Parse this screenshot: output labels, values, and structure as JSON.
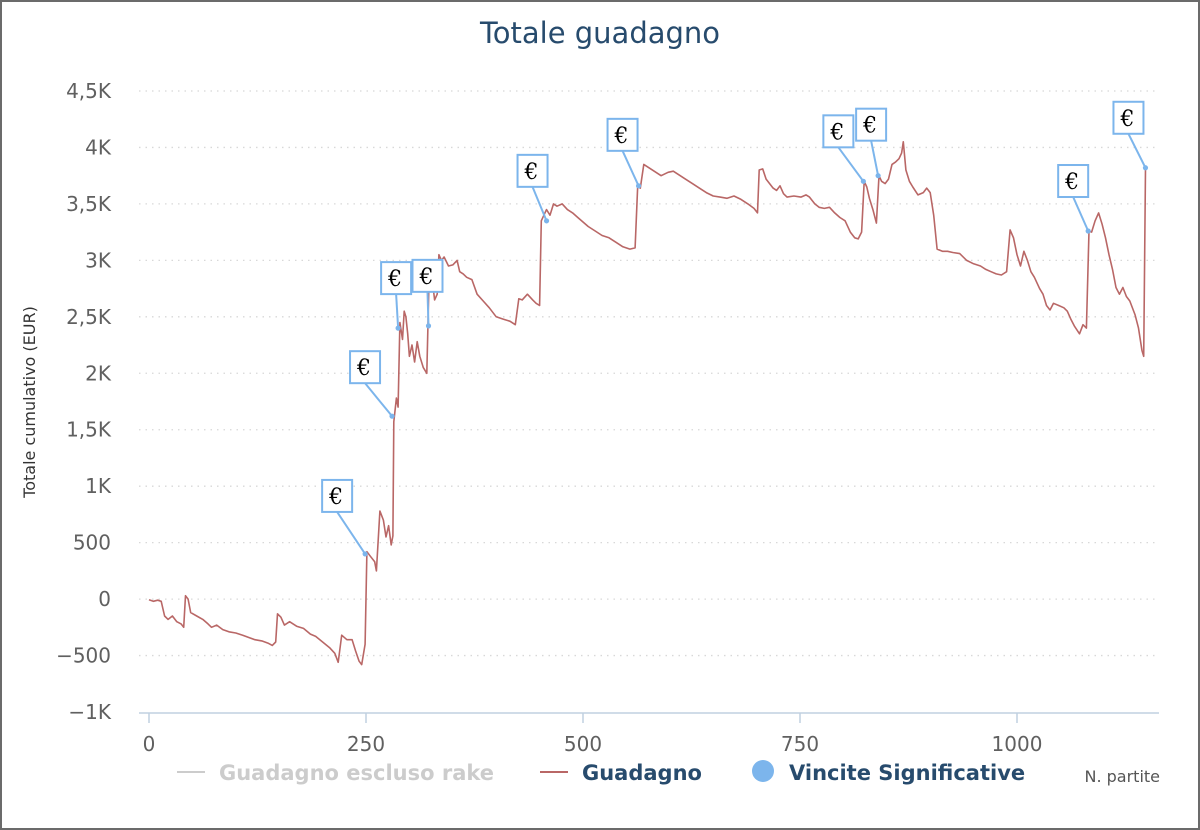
{
  "colors": {
    "title": "#274b6d",
    "line": "#b96766",
    "marker": "#7cb5ec",
    "grid": "#d8d8d8",
    "axis": "#c0d0e0",
    "legend_active": "#274b6d",
    "legend_inactive": "#cccccc"
  },
  "chart_data": {
    "type": "line",
    "title": "Totale guadagno",
    "xlabel": "N. partite",
    "ylabel": "Totale cumulativo (EUR)",
    "xlim": [
      0,
      1160
    ],
    "ylim": [
      -1000,
      4500
    ],
    "x_ticks": [
      0,
      250,
      500,
      750,
      1000
    ],
    "x_tick_labels": [
      "0",
      "250",
      "500",
      "750",
      "1000"
    ],
    "y_ticks": [
      -1000,
      -500,
      0,
      500,
      1000,
      1500,
      2000,
      2500,
      3000,
      3500,
      4000,
      4500
    ],
    "y_tick_labels": [
      "−1K",
      "−500",
      "0",
      "500",
      "1K",
      "1,5K",
      "2K",
      "2,5K",
      "3K",
      "3,5K",
      "4K",
      "4,5K"
    ],
    "grid": true,
    "legend_position": "bottom",
    "legend": [
      {
        "label": "Guadagno escluso rake",
        "active": false,
        "symbol": "line"
      },
      {
        "label": "Guadagno",
        "active": true,
        "symbol": "line"
      },
      {
        "label": "Vincite Significative",
        "active": true,
        "symbol": "circle"
      }
    ],
    "series": [
      {
        "name": "Guadagno",
        "points": [
          [
            0,
            -5
          ],
          [
            5,
            -20
          ],
          [
            10,
            -10
          ],
          [
            14,
            -20
          ],
          [
            18,
            -150
          ],
          [
            22,
            -180
          ],
          [
            27,
            -150
          ],
          [
            32,
            -200
          ],
          [
            37,
            -220
          ],
          [
            40,
            -250
          ],
          [
            42,
            30
          ],
          [
            45,
            0
          ],
          [
            48,
            -120
          ],
          [
            55,
            -150
          ],
          [
            62,
            -180
          ],
          [
            68,
            -220
          ],
          [
            72,
            -250
          ],
          [
            78,
            -230
          ],
          [
            85,
            -270
          ],
          [
            92,
            -290
          ],
          [
            100,
            -300
          ],
          [
            108,
            -320
          ],
          [
            115,
            -340
          ],
          [
            122,
            -360
          ],
          [
            130,
            -370
          ],
          [
            137,
            -390
          ],
          [
            142,
            -410
          ],
          [
            146,
            -380
          ],
          [
            148,
            -130
          ],
          [
            152,
            -160
          ],
          [
            156,
            -230
          ],
          [
            162,
            -200
          ],
          [
            170,
            -240
          ],
          [
            178,
            -260
          ],
          [
            186,
            -310
          ],
          [
            192,
            -330
          ],
          [
            200,
            -380
          ],
          [
            208,
            -430
          ],
          [
            214,
            -480
          ],
          [
            218,
            -560
          ],
          [
            222,
            -320
          ],
          [
            228,
            -360
          ],
          [
            234,
            -360
          ],
          [
            238,
            -460
          ],
          [
            242,
            -550
          ],
          [
            245,
            -580
          ],
          [
            249,
            -400
          ],
          [
            251,
            420
          ],
          [
            255,
            380
          ],
          [
            260,
            330
          ],
          [
            262,
            250
          ],
          [
            266,
            780
          ],
          [
            270,
            700
          ],
          [
            273,
            550
          ],
          [
            276,
            650
          ],
          [
            279,
            480
          ],
          [
            281,
            560
          ],
          [
            282,
            1570
          ],
          [
            285,
            1780
          ],
          [
            287,
            1700
          ],
          [
            289,
            2450
          ],
          [
            292,
            2300
          ],
          [
            294,
            2550
          ],
          [
            296,
            2500
          ],
          [
            298,
            2350
          ],
          [
            300,
            2150
          ],
          [
            303,
            2250
          ],
          [
            306,
            2100
          ],
          [
            309,
            2280
          ],
          [
            312,
            2150
          ],
          [
            316,
            2050
          ],
          [
            320,
            2000
          ],
          [
            323,
            2960
          ],
          [
            326,
            2850
          ],
          [
            329,
            2650
          ],
          [
            332,
            2700
          ],
          [
            334,
            3050
          ],
          [
            337,
            3000
          ],
          [
            340,
            3030
          ],
          [
            345,
            2950
          ],
          [
            350,
            2960
          ],
          [
            355,
            3000
          ],
          [
            358,
            2900
          ],
          [
            362,
            2880
          ],
          [
            366,
            2850
          ],
          [
            372,
            2830
          ],
          [
            378,
            2700
          ],
          [
            385,
            2640
          ],
          [
            392,
            2580
          ],
          [
            400,
            2500
          ],
          [
            408,
            2480
          ],
          [
            416,
            2460
          ],
          [
            422,
            2430
          ],
          [
            426,
            2660
          ],
          [
            430,
            2650
          ],
          [
            436,
            2700
          ],
          [
            442,
            2650
          ],
          [
            446,
            2620
          ],
          [
            450,
            2600
          ],
          [
            452,
            3350
          ],
          [
            458,
            3450
          ],
          [
            462,
            3400
          ],
          [
            466,
            3500
          ],
          [
            470,
            3480
          ],
          [
            476,
            3500
          ],
          [
            482,
            3450
          ],
          [
            488,
            3420
          ],
          [
            494,
            3380
          ],
          [
            500,
            3340
          ],
          [
            506,
            3300
          ],
          [
            514,
            3260
          ],
          [
            522,
            3220
          ],
          [
            530,
            3200
          ],
          [
            538,
            3160
          ],
          [
            546,
            3120
          ],
          [
            554,
            3100
          ],
          [
            560,
            3110
          ],
          [
            563,
            3660
          ],
          [
            566,
            3640
          ],
          [
            570,
            3850
          ],
          [
            576,
            3820
          ],
          [
            582,
            3790
          ],
          [
            590,
            3750
          ],
          [
            598,
            3780
          ],
          [
            604,
            3790
          ],
          [
            610,
            3760
          ],
          [
            618,
            3720
          ],
          [
            626,
            3680
          ],
          [
            634,
            3640
          ],
          [
            642,
            3600
          ],
          [
            650,
            3570
          ],
          [
            658,
            3560
          ],
          [
            666,
            3550
          ],
          [
            674,
            3570
          ],
          [
            682,
            3540
          ],
          [
            690,
            3500
          ],
          [
            697,
            3460
          ],
          [
            701,
            3420
          ],
          [
            703,
            3800
          ],
          [
            707,
            3810
          ],
          [
            711,
            3720
          ],
          [
            715,
            3680
          ],
          [
            719,
            3640
          ],
          [
            723,
            3620
          ],
          [
            727,
            3660
          ],
          [
            731,
            3590
          ],
          [
            735,
            3560
          ],
          [
            743,
            3570
          ],
          [
            751,
            3560
          ],
          [
            757,
            3580
          ],
          [
            761,
            3560
          ],
          [
            767,
            3500
          ],
          [
            772,
            3470
          ],
          [
            778,
            3460
          ],
          [
            784,
            3470
          ],
          [
            790,
            3420
          ],
          [
            796,
            3380
          ],
          [
            802,
            3350
          ],
          [
            808,
            3250
          ],
          [
            813,
            3200
          ],
          [
            817,
            3190
          ],
          [
            821,
            3250
          ],
          [
            824,
            3700
          ],
          [
            827,
            3650
          ],
          [
            830,
            3550
          ],
          [
            834,
            3450
          ],
          [
            838,
            3330
          ],
          [
            841,
            3750
          ],
          [
            844,
            3700
          ],
          [
            848,
            3680
          ],
          [
            852,
            3720
          ],
          [
            856,
            3850
          ],
          [
            860,
            3870
          ],
          [
            864,
            3900
          ],
          [
            867,
            3950
          ],
          [
            869,
            4050
          ],
          [
            872,
            3800
          ],
          [
            876,
            3700
          ],
          [
            880,
            3650
          ],
          [
            886,
            3580
          ],
          [
            892,
            3600
          ],
          [
            896,
            3640
          ],
          [
            900,
            3600
          ],
          [
            904,
            3400
          ],
          [
            908,
            3100
          ],
          [
            914,
            3080
          ],
          [
            920,
            3080
          ],
          [
            926,
            3070
          ],
          [
            934,
            3060
          ],
          [
            942,
            3000
          ],
          [
            950,
            2970
          ],
          [
            958,
            2950
          ],
          [
            964,
            2920
          ],
          [
            970,
            2900
          ],
          [
            976,
            2880
          ],
          [
            982,
            2870
          ],
          [
            988,
            2900
          ],
          [
            992,
            3270
          ],
          [
            996,
            3200
          ],
          [
            1000,
            3050
          ],
          [
            1004,
            2950
          ],
          [
            1008,
            3080
          ],
          [
            1012,
            3000
          ],
          [
            1016,
            2900
          ],
          [
            1020,
            2850
          ],
          [
            1026,
            2750
          ],
          [
            1030,
            2700
          ],
          [
            1034,
            2600
          ],
          [
            1038,
            2560
          ],
          [
            1042,
            2620
          ],
          [
            1048,
            2600
          ],
          [
            1054,
            2580
          ],
          [
            1058,
            2550
          ],
          [
            1062,
            2480
          ],
          [
            1066,
            2420
          ],
          [
            1072,
            2350
          ],
          [
            1076,
            2430
          ],
          [
            1080,
            2400
          ],
          [
            1083,
            3260
          ],
          [
            1086,
            3250
          ],
          [
            1090,
            3350
          ],
          [
            1094,
            3420
          ],
          [
            1098,
            3320
          ],
          [
            1102,
            3200
          ],
          [
            1106,
            3050
          ],
          [
            1110,
            2920
          ],
          [
            1114,
            2760
          ],
          [
            1118,
            2700
          ],
          [
            1122,
            2760
          ],
          [
            1126,
            2680
          ],
          [
            1130,
            2640
          ],
          [
            1136,
            2520
          ],
          [
            1140,
            2400
          ],
          [
            1144,
            2200
          ],
          [
            1146,
            2150
          ],
          [
            1148,
            3820
          ],
          [
            1150,
            3830
          ]
        ]
      }
    ],
    "markers": [
      {
        "series": "Vincite Significative",
        "x": 249,
        "y": 400,
        "label": "€"
      },
      {
        "series": "Vincite Significative",
        "x": 280,
        "y": 1620,
        "label": "€"
      },
      {
        "series": "Vincite Significative",
        "x": 287,
        "y": 2400,
        "label": "€"
      },
      {
        "series": "Vincite Significative",
        "x": 322,
        "y": 2420,
        "label": "€"
      },
      {
        "series": "Vincite Significative",
        "x": 458,
        "y": 3350,
        "label": "€"
      },
      {
        "series": "Vincite Significative",
        "x": 564,
        "y": 3660,
        "label": "€"
      },
      {
        "series": "Vincite Significative",
        "x": 823,
        "y": 3700,
        "label": "€"
      },
      {
        "series": "Vincite Significative",
        "x": 840,
        "y": 3750,
        "label": "€"
      },
      {
        "series": "Vincite Significative",
        "x": 1082,
        "y": 3260,
        "label": "€"
      },
      {
        "series": "Vincite Significative",
        "x": 1148,
        "y": 3820,
        "label": "€"
      }
    ]
  }
}
